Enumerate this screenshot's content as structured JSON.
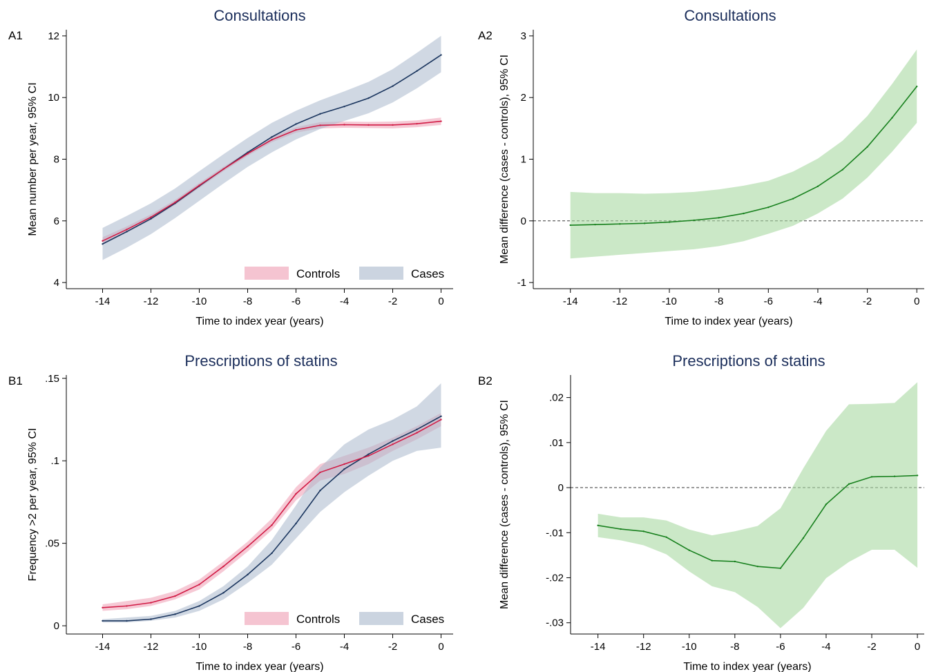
{
  "figure": {
    "series_colors": {
      "Controls": {
        "line": "#d11b45",
        "band": "#ef9db3",
        "band_opacity": 0.55
      },
      "Cases": {
        "line": "#1a355e",
        "band": "#a9b8cc",
        "band_opacity": 0.55
      },
      "Difference": {
        "line": "#17801d",
        "band": "#a9d8a2",
        "band_opacity": 0.6
      }
    },
    "axis_color": "#000000",
    "title_color": "#1a2d5a"
  },
  "chart_data": [
    {
      "id": "A1",
      "panel_label": "A1",
      "type": "line",
      "title": "Consultations",
      "xlabel": "Time to index year (years)",
      "ylabel": "Mean number per year, 95% CI",
      "xlim": [
        -15.5,
        0.5
      ],
      "ylim": [
        3.8,
        12.2
      ],
      "xticks": [
        -14,
        -12,
        -10,
        -8,
        -6,
        -4,
        -2,
        0
      ],
      "xtick_labels": [
        "-14",
        "-12",
        "-10",
        "-8",
        "-6",
        "-4",
        "-2",
        "0"
      ],
      "yticks": [
        4,
        6,
        8,
        10,
        12
      ],
      "ytick_labels": [
        "4",
        "6",
        "8",
        "10",
        "12"
      ],
      "legend": [
        "Controls",
        "Cases"
      ],
      "legend_position": "bottom-right",
      "zero_line": false,
      "x": [
        -14,
        -13,
        -12,
        -11,
        -10,
        -9,
        -8,
        -7,
        -6,
        -5,
        -4,
        -3,
        -2,
        -1,
        0
      ],
      "series": [
        {
          "name": "Controls",
          "values": [
            5.35,
            5.72,
            6.12,
            6.6,
            7.15,
            7.68,
            8.18,
            8.63,
            8.95,
            9.1,
            9.12,
            9.11,
            9.11,
            9.15,
            9.23
          ],
          "lower": [
            5.23,
            5.62,
            6.03,
            6.52,
            7.07,
            7.61,
            8.11,
            8.55,
            8.86,
            9.0,
            9.02,
            9.01,
            9.0,
            9.04,
            9.11
          ],
          "upper": [
            5.47,
            5.82,
            6.21,
            6.68,
            7.23,
            7.75,
            8.25,
            8.71,
            9.04,
            9.2,
            9.22,
            9.21,
            9.22,
            9.26,
            9.35
          ]
        },
        {
          "name": "Cases",
          "values": [
            5.25,
            5.65,
            6.07,
            6.57,
            7.13,
            7.68,
            8.22,
            8.72,
            9.14,
            9.47,
            9.71,
            9.98,
            10.37,
            10.86,
            11.38
          ],
          "lower": [
            4.73,
            5.13,
            5.57,
            6.09,
            6.65,
            7.21,
            7.75,
            8.22,
            8.64,
            8.98,
            9.24,
            9.49,
            9.84,
            10.3,
            10.82
          ],
          "upper": [
            5.77,
            6.16,
            6.57,
            7.05,
            7.61,
            8.16,
            8.69,
            9.18,
            9.57,
            9.91,
            10.2,
            10.51,
            10.92,
            11.45,
            12.0
          ]
        }
      ]
    },
    {
      "id": "A2",
      "panel_label": "A2",
      "type": "line",
      "title": "Consultations",
      "xlabel": "Time to index year (years)",
      "ylabel": "Mean difference (cases - controls), 95% CI",
      "xlim": [
        -15.5,
        0.3
      ],
      "ylim": [
        -1.1,
        3.1
      ],
      "xticks": [
        -14,
        -12,
        -10,
        -8,
        -6,
        -4,
        -2,
        0
      ],
      "xtick_labels": [
        "-14",
        "-12",
        "-10",
        "-8",
        "-6",
        "-4",
        "-2",
        "0"
      ],
      "yticks": [
        -1,
        0,
        1,
        2,
        3
      ],
      "ytick_labels": [
        "-1",
        "0",
        "1",
        "2",
        "3"
      ],
      "legend": [],
      "zero_line": true,
      "x": [
        -14,
        -13,
        -12,
        -11,
        -10,
        -9,
        -8,
        -7,
        -6,
        -5,
        -4,
        -3,
        -2,
        -1,
        0
      ],
      "series": [
        {
          "name": "",
          "color_key": "Difference",
          "values": [
            -0.07,
            -0.06,
            -0.05,
            -0.04,
            -0.02,
            0.01,
            0.05,
            0.12,
            0.22,
            0.36,
            0.56,
            0.83,
            1.2,
            1.67,
            2.18
          ],
          "lower": [
            -0.61,
            -0.58,
            -0.55,
            -0.52,
            -0.49,
            -0.46,
            -0.41,
            -0.33,
            -0.21,
            -0.08,
            0.12,
            0.36,
            0.7,
            1.12,
            1.59
          ],
          "upper": [
            0.47,
            0.45,
            0.45,
            0.44,
            0.45,
            0.47,
            0.51,
            0.57,
            0.65,
            0.8,
            1.01,
            1.3,
            1.7,
            2.22,
            2.78
          ]
        }
      ]
    },
    {
      "id": "B1",
      "panel_label": "B1",
      "type": "line",
      "title": "Prescriptions of statins",
      "xlabel": "Time to index year (years)",
      "ylabel": "Frequency >2 per year, 95% CI",
      "xlim": [
        -15.5,
        0.5
      ],
      "ylim": [
        -0.005,
        0.152
      ],
      "xticks": [
        -14,
        -12,
        -10,
        -8,
        -6,
        -4,
        -2,
        0
      ],
      "xtick_labels": [
        "-14",
        "-12",
        "-10",
        "-8",
        "-6",
        "-4",
        "-2",
        "0"
      ],
      "yticks": [
        0,
        0.05,
        0.1,
        0.15
      ],
      "ytick_labels": [
        "0",
        ".05",
        ".1",
        ".15"
      ],
      "legend": [
        "Controls",
        "Cases"
      ],
      "legend_position": "bottom-right",
      "zero_line": false,
      "x": [
        -14,
        -13,
        -12,
        -11,
        -10,
        -9,
        -8,
        -7,
        -6,
        -5,
        -4,
        -3,
        -2,
        -1,
        0
      ],
      "series": [
        {
          "name": "Controls",
          "values": [
            0.011,
            0.012,
            0.014,
            0.018,
            0.025,
            0.036,
            0.048,
            0.061,
            0.08,
            0.093,
            0.098,
            0.103,
            0.11,
            0.117,
            0.125
          ],
          "lower": [
            0.009,
            0.01,
            0.012,
            0.016,
            0.022,
            0.033,
            0.045,
            0.058,
            0.076,
            0.088,
            0.092,
            0.098,
            0.106,
            0.113,
            0.121
          ],
          "upper": [
            0.013,
            0.015,
            0.017,
            0.021,
            0.028,
            0.039,
            0.051,
            0.065,
            0.084,
            0.098,
            0.103,
            0.108,
            0.114,
            0.121,
            0.129
          ]
        },
        {
          "name": "Cases",
          "values": [
            0.003,
            0.003,
            0.004,
            0.007,
            0.012,
            0.02,
            0.031,
            0.044,
            0.062,
            0.082,
            0.095,
            0.104,
            0.112,
            0.119,
            0.127
          ],
          "lower": [
            0.002,
            0.002,
            0.003,
            0.005,
            0.009,
            0.016,
            0.026,
            0.037,
            0.053,
            0.069,
            0.081,
            0.091,
            0.1,
            0.106,
            0.108
          ],
          "upper": [
            0.004,
            0.005,
            0.006,
            0.009,
            0.015,
            0.024,
            0.036,
            0.052,
            0.073,
            0.096,
            0.11,
            0.119,
            0.125,
            0.133,
            0.147
          ]
        }
      ]
    },
    {
      "id": "B2",
      "panel_label": "B2",
      "type": "line",
      "title": "Prescriptions of statins",
      "xlabel": "Time to index year (years)",
      "ylabel": "Mean difference (cases - controls), 95% CI",
      "xlim": [
        -15.2,
        0.3
      ],
      "ylim": [
        -0.0325,
        0.025
      ],
      "xticks": [
        -14,
        -12,
        -10,
        -8,
        -6,
        -4,
        -2,
        0
      ],
      "xtick_labels": [
        "-14",
        "-12",
        "-10",
        "-8",
        "-6",
        "-4",
        "-2",
        "0"
      ],
      "yticks": [
        -0.03,
        -0.02,
        -0.01,
        0,
        0.01,
        0.02
      ],
      "ytick_labels": [
        "-.03",
        "-.02",
        "-.01",
        "0",
        ".01",
        ".02"
      ],
      "legend": [],
      "zero_line": true,
      "x": [
        -14,
        -13,
        -12,
        -11,
        -10,
        -9,
        -8,
        -7,
        -6,
        -5,
        -4,
        -3,
        -2,
        -1,
        0
      ],
      "series": [
        {
          "name": "",
          "color_key": "Difference",
          "values": [
            -0.0084,
            -0.0092,
            -0.0097,
            -0.011,
            -0.0139,
            -0.0162,
            -0.0164,
            -0.0175,
            -0.0179,
            -0.0112,
            -0.0037,
            0.0008,
            0.0024,
            0.0025,
            0.0027
          ],
          "lower": [
            -0.011,
            -0.0117,
            -0.0128,
            -0.0148,
            -0.0186,
            -0.0219,
            -0.0232,
            -0.0265,
            -0.0312,
            -0.0267,
            -0.0201,
            -0.0165,
            -0.0138,
            -0.0138,
            -0.0178
          ],
          "upper": [
            -0.0058,
            -0.0066,
            -0.0066,
            -0.0073,
            -0.0093,
            -0.0106,
            -0.0097,
            -0.0085,
            -0.0046,
            0.0043,
            0.0126,
            0.0185,
            0.0186,
            0.0188,
            0.0234
          ]
        }
      ]
    }
  ]
}
